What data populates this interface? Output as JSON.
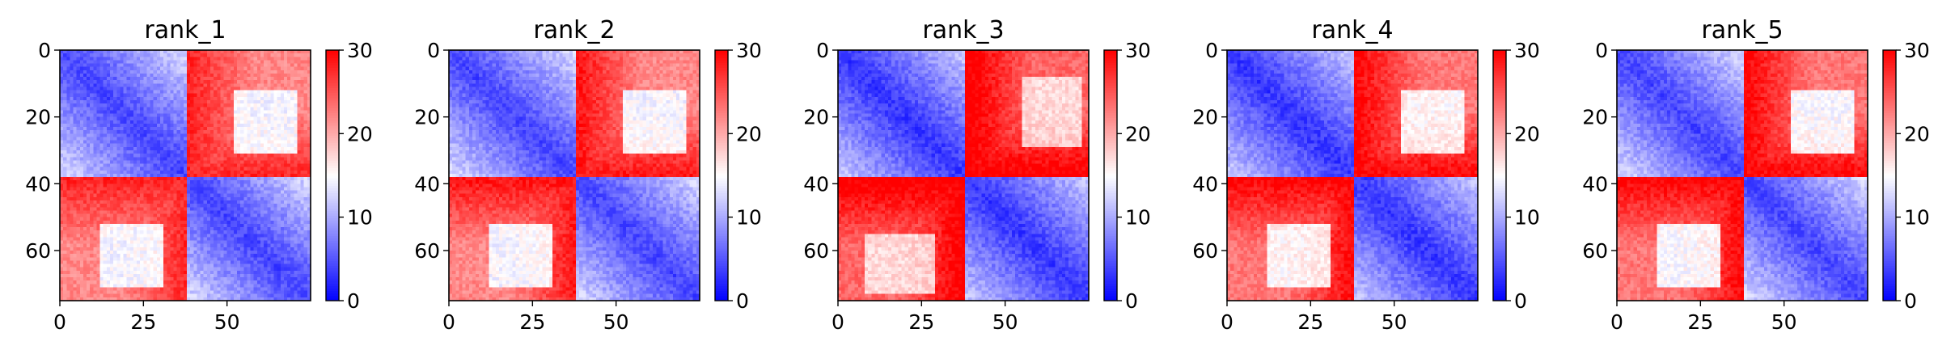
{
  "chart_data": [
    {
      "type": "heatmap",
      "title": "rank_1",
      "matrix_size": 75,
      "x_ticks": [
        0,
        25,
        50
      ],
      "y_ticks": [
        0,
        20,
        40,
        60
      ],
      "colorbar": {
        "range": [
          0,
          30
        ],
        "ticks": [
          0,
          10,
          20,
          30
        ],
        "colormap": "bwr",
        "colors": [
          "#0000ff",
          "#ffffff",
          "#ff0000"
        ]
      },
      "structure": {
        "domain_boundaries": [
          0,
          38,
          75
        ],
        "intra_domain_distance": [
          4,
          13
        ],
        "inter_domain_distance": [
          22,
          28
        ],
        "inner_patch": {
          "x_range": [
            12,
            30
          ],
          "y_range": [
            52,
            70
          ],
          "value": 12
        }
      }
    },
    {
      "type": "heatmap",
      "title": "rank_2",
      "matrix_size": 75,
      "x_ticks": [
        0,
        25,
        50
      ],
      "y_ticks": [
        0,
        20,
        40,
        60
      ],
      "colorbar": {
        "range": [
          0,
          30
        ],
        "ticks": [
          0,
          10,
          20,
          30
        ],
        "colormap": "bwr",
        "colors": [
          "#0000ff",
          "#ffffff",
          "#ff0000"
        ]
      },
      "structure": {
        "domain_boundaries": [
          0,
          38,
          75
        ],
        "intra_domain_distance": [
          4,
          13
        ],
        "inter_domain_distance": [
          22,
          29
        ],
        "inner_patch": {
          "x_range": [
            12,
            30
          ],
          "y_range": [
            52,
            70
          ],
          "value": 12
        }
      }
    },
    {
      "type": "heatmap",
      "title": "rank_3",
      "matrix_size": 75,
      "x_ticks": [
        0,
        25,
        50
      ],
      "y_ticks": [
        0,
        20,
        40,
        60
      ],
      "colorbar": {
        "range": [
          0,
          30
        ],
        "ticks": [
          0,
          10,
          20,
          30
        ],
        "colormap": "bwr",
        "colors": [
          "#0000ff",
          "#ffffff",
          "#ff0000"
        ]
      },
      "structure": {
        "domain_boundaries": [
          0,
          38,
          75
        ],
        "intra_domain_distance": [
          3,
          12
        ],
        "inter_domain_distance": [
          24,
          31
        ],
        "inner_patch": {
          "x_range": [
            8,
            28
          ],
          "y_range": [
            55,
            72
          ],
          "value": 15
        }
      }
    },
    {
      "type": "heatmap",
      "title": "rank_4",
      "matrix_size": 75,
      "x_ticks": [
        0,
        25,
        50
      ],
      "y_ticks": [
        0,
        20,
        40,
        60
      ],
      "colorbar": {
        "range": [
          0,
          30
        ],
        "ticks": [
          0,
          10,
          20,
          30
        ],
        "colormap": "bwr",
        "colors": [
          "#0000ff",
          "#ffffff",
          "#ff0000"
        ]
      },
      "structure": {
        "domain_boundaries": [
          0,
          38,
          75
        ],
        "intra_domain_distance": [
          3,
          12
        ],
        "inter_domain_distance": [
          23,
          30
        ],
        "inner_patch": {
          "x_range": [
            12,
            30
          ],
          "y_range": [
            52,
            70
          ],
          "value": 13
        }
      }
    },
    {
      "type": "heatmap",
      "title": "rank_5",
      "matrix_size": 75,
      "x_ticks": [
        0,
        25,
        50
      ],
      "y_ticks": [
        0,
        20,
        40,
        60
      ],
      "colorbar": {
        "range": [
          0,
          30
        ],
        "ticks": [
          0,
          10,
          20,
          30
        ],
        "colormap": "bwr",
        "colors": [
          "#0000ff",
          "#ffffff",
          "#ff0000"
        ]
      },
      "structure": {
        "domain_boundaries": [
          0,
          38,
          75
        ],
        "intra_domain_distance": [
          4,
          13
        ],
        "inter_domain_distance": [
          23,
          30
        ],
        "inner_patch": {
          "x_range": [
            12,
            30
          ],
          "y_range": [
            52,
            70
          ],
          "value": 12
        }
      }
    }
  ]
}
